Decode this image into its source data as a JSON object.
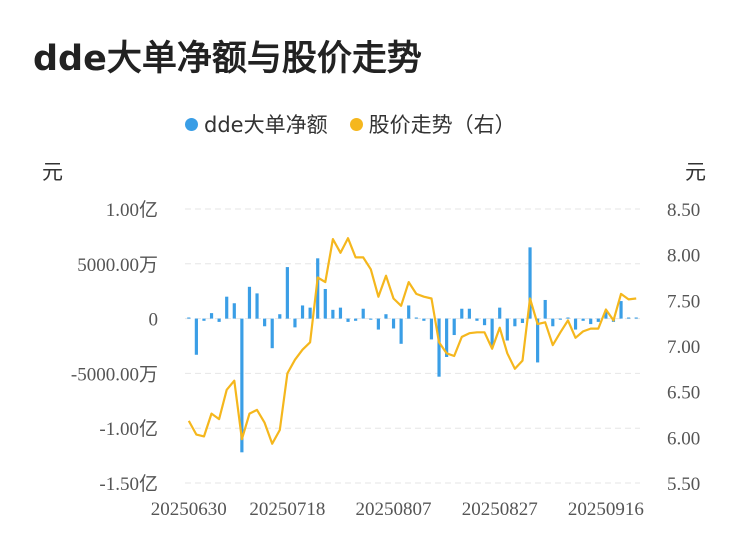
{
  "title": "dde大单净额与股价走势",
  "legend": [
    {
      "label": "dde大单净额",
      "color": "#3a9ee6"
    },
    {
      "label": "股价走势（右）",
      "color": "#f5b71d"
    }
  ],
  "left_unit": "元",
  "right_unit": "元",
  "chart_data": {
    "type": "bar+line",
    "title": "dde大单净额与股价走势",
    "x_tick_labels": [
      "20250630",
      "20250718",
      "20250807",
      "20250827",
      "20250916"
    ],
    "x_tick_index": [
      0,
      13,
      27,
      41,
      55
    ],
    "left_axis": {
      "label": "元",
      "tick_values": [
        1,
        0.5,
        0,
        -0.5,
        -1,
        -1.5
      ],
      "tick_labels": [
        "1.00亿",
        "5000.00万",
        "0",
        "-5000.00万",
        "-1.00亿",
        "-1.50亿"
      ],
      "unit": "亿元",
      "range": [
        -1.5,
        1.0
      ]
    },
    "right_axis": {
      "label": "元",
      "tick_values": [
        8.5,
        8.0,
        7.5,
        7.0,
        6.5,
        6.0,
        5.5
      ],
      "tick_labels": [
        "8.50",
        "8.00",
        "7.50",
        "7.00",
        "6.50",
        "6.00",
        "5.50"
      ],
      "range": [
        5.5,
        8.5
      ]
    },
    "grid": true,
    "series": [
      {
        "name": "dde大单净额",
        "type": "bar",
        "axis": "left",
        "color": "#3a9ee6",
        "values": [
          0.01,
          -0.33,
          -0.02,
          0.05,
          -0.03,
          0.2,
          0.14,
          -1.22,
          0.29,
          0.23,
          -0.07,
          -0.27,
          0.04,
          0.47,
          -0.08,
          0.12,
          0.1,
          0.55,
          0.27,
          0.08,
          0.1,
          -0.03,
          -0.02,
          0.09,
          -0.01,
          -0.1,
          0.04,
          -0.09,
          -0.23,
          0.12,
          0.01,
          -0.02,
          -0.19,
          -0.53,
          -0.35,
          -0.15,
          0.09,
          0.09,
          -0.02,
          -0.06,
          -0.26,
          0.1,
          -0.2,
          -0.07,
          -0.04,
          0.65,
          -0.4,
          0.17,
          -0.07,
          -0.01,
          0.01,
          -0.1,
          -0.02,
          -0.05,
          -0.03,
          0.07,
          -0.03,
          0.16,
          0.01,
          0.01
        ]
      },
      {
        "name": "股价走势（右）",
        "type": "line",
        "axis": "right",
        "color": "#f5b71d",
        "values": [
          6.18,
          6.03,
          6.01,
          6.26,
          6.2,
          6.52,
          6.62,
          5.98,
          6.26,
          6.3,
          6.16,
          5.93,
          6.08,
          6.7,
          6.85,
          6.96,
          7.04,
          7.75,
          7.7,
          8.17,
          8.02,
          8.18,
          7.97,
          7.97,
          7.84,
          7.54,
          7.77,
          7.52,
          7.44,
          7.7,
          7.57,
          7.54,
          7.52,
          7.04,
          6.92,
          6.89,
          7.1,
          7.14,
          7.15,
          7.15,
          6.97,
          7.2,
          6.92,
          6.75,
          6.84,
          7.52,
          7.24,
          7.26,
          7.01,
          7.15,
          7.28,
          7.09,
          7.16,
          7.19,
          7.19,
          7.4,
          7.28,
          7.57,
          7.51,
          7.52
        ]
      }
    ]
  }
}
